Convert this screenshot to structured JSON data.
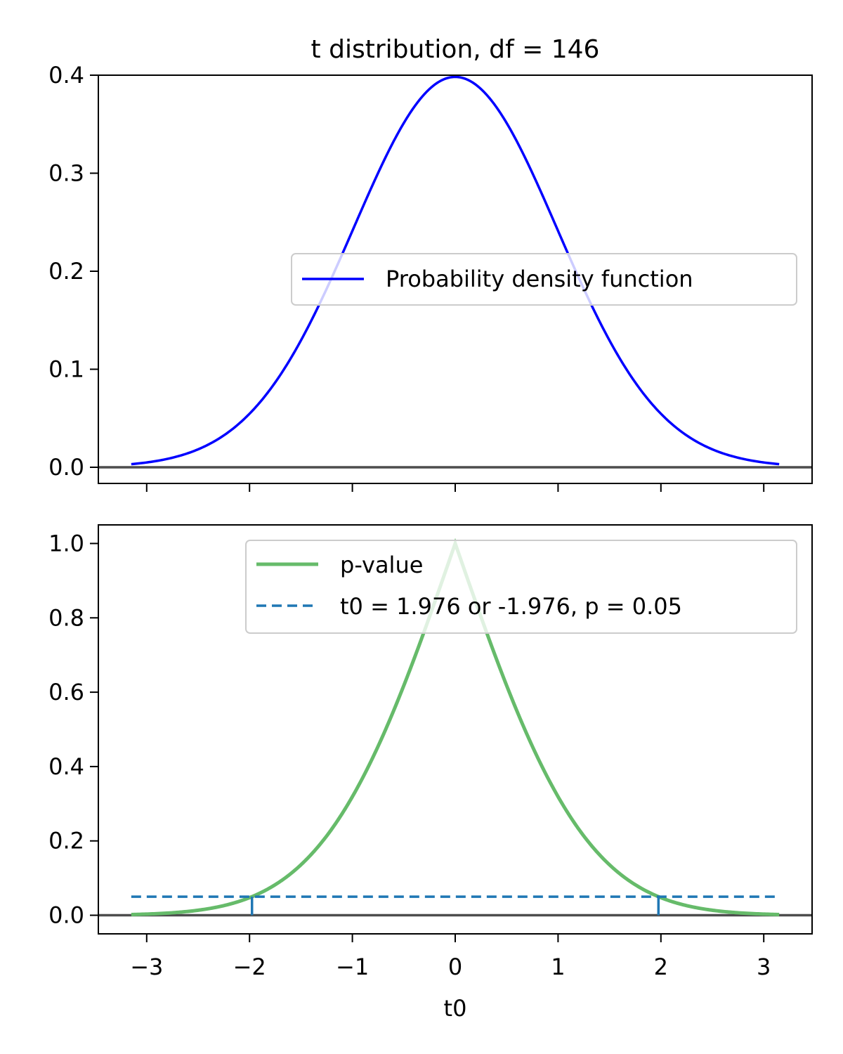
{
  "figure": {
    "title": "t distribution, df = 146"
  },
  "chart_data": [
    {
      "type": "line",
      "panel": "top",
      "df": 146,
      "x_range": [
        -3.15,
        3.15
      ],
      "xlim": [
        -3.47,
        3.47
      ],
      "ylim": [
        -0.0165,
        0.4
      ],
      "x_ticks": [
        -3,
        -2,
        -1,
        0,
        1,
        2,
        3
      ],
      "x_tick_labels_visible": false,
      "y_ticks": [
        0.0,
        0.1,
        0.2,
        0.3,
        0.4
      ],
      "y_tick_labels": [
        "0.0",
        "0.1",
        "0.2",
        "0.3",
        "0.4"
      ],
      "series": [
        {
          "name": "Probability density function",
          "color": "#0000ff",
          "x": [
            -3.0,
            -2.5,
            -2.0,
            -1.5,
            -1.0,
            -0.5,
            0.0,
            0.5,
            1.0,
            1.5,
            2.0,
            2.5,
            3.0
          ],
          "y": [
            0.0046,
            0.0178,
            0.0546,
            0.1296,
            0.2414,
            0.3516,
            0.3983,
            0.3516,
            0.2414,
            0.1296,
            0.0546,
            0.0178,
            0.0046
          ]
        }
      ],
      "reference_line": {
        "y": 0.0,
        "color": "#4d4d4d"
      },
      "legend": {
        "placement": "center-right"
      },
      "grid": false
    },
    {
      "type": "line",
      "panel": "bottom",
      "x_range": [
        -3.15,
        3.15
      ],
      "xlim": [
        -3.47,
        3.47
      ],
      "ylim": [
        -0.05,
        1.05
      ],
      "x_ticks": [
        -3,
        -2,
        -1,
        0,
        1,
        2,
        3
      ],
      "x_tick_labels": [
        "−3",
        "−2",
        "−1",
        "0",
        "1",
        "2",
        "3"
      ],
      "y_ticks": [
        0.0,
        0.2,
        0.4,
        0.6,
        0.8,
        1.0
      ],
      "y_tick_labels": [
        "0.0",
        "0.2",
        "0.4",
        "0.6",
        "0.8",
        "1.0"
      ],
      "xlabel": "t0",
      "series": [
        {
          "name": "p-value",
          "color": "#66bb6a",
          "x": [
            -3.0,
            -2.5,
            -2.0,
            -1.5,
            -1.0,
            -0.5,
            0.0,
            0.5,
            1.0,
            1.5,
            2.0,
            2.5,
            3.0
          ],
          "y": [
            0.0032,
            0.0135,
            0.0474,
            0.1357,
            0.319,
            0.6178,
            1.0,
            0.6178,
            0.319,
            0.1357,
            0.0474,
            0.0135,
            0.0032
          ]
        },
        {
          "name": "t0 = 1.976 or -1.976, p = 0.05",
          "color": "#1f77b4",
          "style": "dashed",
          "y": 0.05
        }
      ],
      "critical_t": [
        -1.976,
        1.976
      ],
      "reference_line": {
        "y": 0.0,
        "color": "#4d4d4d"
      },
      "legend": {
        "placement": "upper-right"
      },
      "grid": false
    }
  ]
}
